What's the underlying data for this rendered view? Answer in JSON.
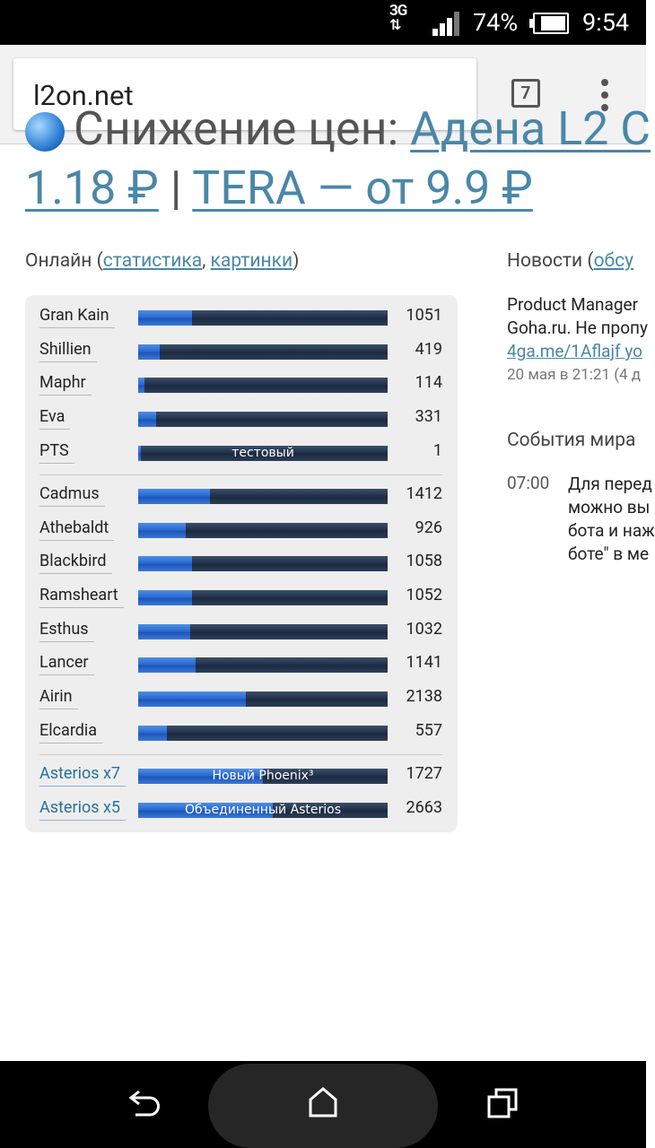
{
  "status_bar": {
    "network": "3G",
    "battery": "74%",
    "time": "9:54"
  },
  "browser": {
    "url": "l2on.net",
    "tab_count": "7"
  },
  "banner": {
    "partial_text": "Снижение цен: ",
    "partial_link": "Адена L2 С",
    "price1": "1.18 ₽",
    "separator": "|",
    "tera_link": "TERA — от 9.9 ₽"
  },
  "online": {
    "label": "Онлайн",
    "open_paren": "(",
    "stats_link": "статистика",
    "comma": ",",
    "pictures_link": "картинки",
    "close_paren": ")",
    "groups": [
      [
        {
          "name": "Gran Kain",
          "value": "1051",
          "fill": 0.215
        },
        {
          "name": "Shillien",
          "value": "419",
          "fill": 0.086
        },
        {
          "name": "Maphr",
          "value": "114",
          "fill": 0.025
        },
        {
          "name": "Eva",
          "value": "331",
          "fill": 0.072
        },
        {
          "name": "PTS",
          "value": "1",
          "fill": 0.005,
          "label": "тестовый"
        }
      ],
      [
        {
          "name": "Cadmus",
          "value": "1412",
          "fill": 0.288
        },
        {
          "name": "Athebaldt",
          "value": "926",
          "fill": 0.19
        },
        {
          "name": "Blackbird",
          "value": "1058",
          "fill": 0.216
        },
        {
          "name": "Ramsheart",
          "value": "1052",
          "fill": 0.216
        },
        {
          "name": "Esthus",
          "value": "1032",
          "fill": 0.21
        },
        {
          "name": "Lancer",
          "value": "1141",
          "fill": 0.23
        },
        {
          "name": "Airin",
          "value": "2138",
          "fill": 0.432
        },
        {
          "name": "Elcardia",
          "value": "557",
          "fill": 0.115
        }
      ],
      [
        {
          "name": "Asterios x7",
          "value": "1727",
          "fill": 0.5,
          "label": "Новый Phoenix³",
          "link": true
        },
        {
          "name": "Asterios x5",
          "value": "2663",
          "fill": 0.54,
          "label": "Объединенный Asterios",
          "link": true
        }
      ]
    ]
  },
  "news": {
    "label": "Новости",
    "open_paren": "(",
    "discuss_link": "обсу",
    "line1": "Product Manager",
    "line2": "Goha.ru. Не пропу",
    "link_text": "4ga.me/1Aflajf yo",
    "date": "20 мая в 21:21 (4 д"
  },
  "events": {
    "label": "События мира",
    "time": "07:00",
    "lines": [
      "Для перед",
      "можно вы",
      "бота и наж",
      "боте\" в ме"
    ]
  },
  "nav": {
    "back": "back-icon",
    "home": "home-icon",
    "recents": "recents-icon"
  }
}
